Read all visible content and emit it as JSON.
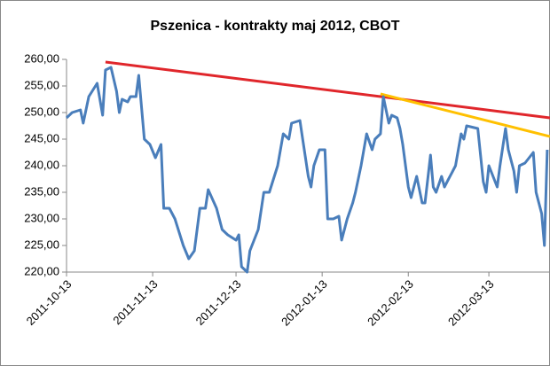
{
  "chart_data": {
    "type": "line",
    "title": "Pszenica - kontrakty maj 2012, CBOT",
    "xlim": [
      "2011-10-13",
      "2012-04-04"
    ],
    "xticks": [
      "2011-10-13",
      "2011-11-13",
      "2011-12-13",
      "2012-01-13",
      "2012-02-13",
      "2012-03-13"
    ],
    "ylim": [
      220,
      260
    ],
    "yticks": [
      {
        "value": 220,
        "label": "220,00"
      },
      {
        "value": 225,
        "label": "225,00"
      },
      {
        "value": 230,
        "label": "230,00"
      },
      {
        "value": 235,
        "label": "235,00"
      },
      {
        "value": 240,
        "label": "240,00"
      },
      {
        "value": 245,
        "label": "245,00"
      },
      {
        "value": 250,
        "label": "250,00"
      },
      {
        "value": 255,
        "label": "255,00"
      },
      {
        "value": 260,
        "label": "260,00"
      }
    ],
    "grid": false,
    "series": [
      {
        "color": "#4a7ebb",
        "x": [
          "2011-10-13",
          "2011-10-15",
          "2011-10-18",
          "2011-10-19",
          "2011-10-21",
          "2011-10-24",
          "2011-10-26",
          "2011-10-27",
          "2011-10-29",
          "2011-10-31",
          "2011-11-01",
          "2011-11-02",
          "2011-11-04",
          "2011-11-05",
          "2011-11-07",
          "2011-11-08",
          "2011-11-10",
          "2011-11-12",
          "2011-11-14",
          "2011-11-16",
          "2011-11-17",
          "2011-11-19",
          "2011-11-21",
          "2011-11-24",
          "2011-11-26",
          "2011-11-28",
          "2011-11-30",
          "2011-12-02",
          "2011-12-03",
          "2011-12-06",
          "2011-12-08",
          "2011-12-10",
          "2011-12-13",
          "2011-12-14",
          "2011-12-15",
          "2011-12-17",
          "2011-12-18",
          "2011-12-21",
          "2011-12-23",
          "2011-12-25",
          "2011-12-28",
          "2011-12-30",
          "2012-01-01",
          "2012-01-02",
          "2012-01-05",
          "2012-01-06",
          "2012-01-08",
          "2012-01-09",
          "2012-01-10",
          "2012-01-12",
          "2012-01-14",
          "2012-01-15",
          "2012-01-17",
          "2012-01-19",
          "2012-01-20",
          "2012-01-22",
          "2012-01-24",
          "2012-01-25",
          "2012-01-27",
          "2012-01-29",
          "2012-01-31",
          "2012-02-01",
          "2012-02-03",
          "2012-02-04",
          "2012-02-06",
          "2012-02-07",
          "2012-02-09",
          "2012-02-10",
          "2012-02-11",
          "2012-02-13",
          "2012-02-14",
          "2012-02-15",
          "2012-02-16",
          "2012-02-18",
          "2012-02-19",
          "2012-02-21",
          "2012-02-22",
          "2012-02-23",
          "2012-02-25",
          "2012-02-26",
          "2012-02-27",
          "2012-02-29",
          "2012-03-01",
          "2012-03-03",
          "2012-03-04",
          "2012-03-05",
          "2012-03-09",
          "2012-03-11",
          "2012-03-12",
          "2012-03-13",
          "2012-03-16",
          "2012-03-17",
          "2012-03-19",
          "2012-03-20",
          "2012-03-22",
          "2012-03-23",
          "2012-03-24",
          "2012-03-26",
          "2012-03-29",
          "2012-03-30",
          "2012-04-01",
          "2012-04-02",
          "2012-04-03"
        ],
        "values": [
          249,
          250,
          250.5,
          248,
          253,
          255.5,
          249.5,
          258,
          258.5,
          254,
          250,
          252.5,
          252,
          253,
          253,
          257,
          245,
          244,
          241.5,
          244,
          232,
          232,
          230,
          225,
          222.5,
          224,
          232,
          232,
          235.5,
          232,
          228,
          227,
          226,
          227,
          221,
          220,
          224,
          228,
          235,
          235,
          240,
          246,
          245,
          248,
          248.5,
          245,
          238,
          236,
          240,
          243,
          243,
          230,
          230,
          230.5,
          226,
          230,
          233,
          235,
          240,
          246,
          243,
          245,
          246,
          253,
          248,
          249.5,
          249,
          247,
          244,
          236,
          234,
          236,
          238,
          233,
          233,
          242,
          236,
          235,
          238,
          236,
          237,
          239,
          240,
          246,
          245,
          247.5,
          247,
          237,
          235,
          240,
          236,
          240,
          247,
          243,
          239,
          235,
          240,
          240.5,
          242.5,
          235,
          231,
          225,
          243
        ]
      }
    ],
    "trend_lines": [
      {
        "color": "#e0262b",
        "x": [
          "2011-10-27",
          "2012-04-04"
        ],
        "values": [
          259.5,
          249
        ]
      },
      {
        "color": "#ffc000",
        "x": [
          "2012-02-03",
          "2012-04-04"
        ],
        "values": [
          253.5,
          245.5
        ]
      }
    ]
  }
}
